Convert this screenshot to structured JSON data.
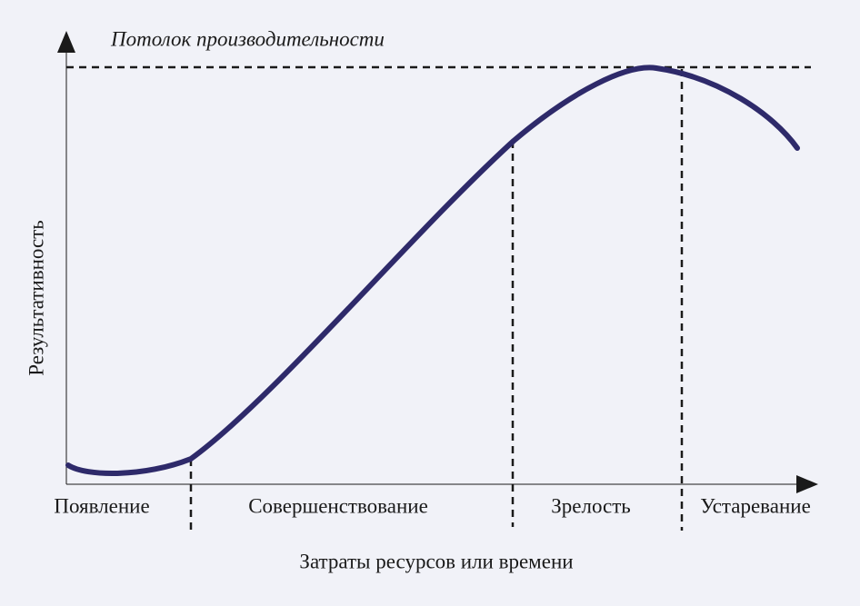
{
  "ceiling_label": "Потолок производительности",
  "y_axis_label": "Результативность",
  "x_axis_label": "Затраты ресурсов или времени",
  "stages": [
    "Появление",
    "Совершенствование",
    "Зрелость",
    "Устаревание"
  ]
}
